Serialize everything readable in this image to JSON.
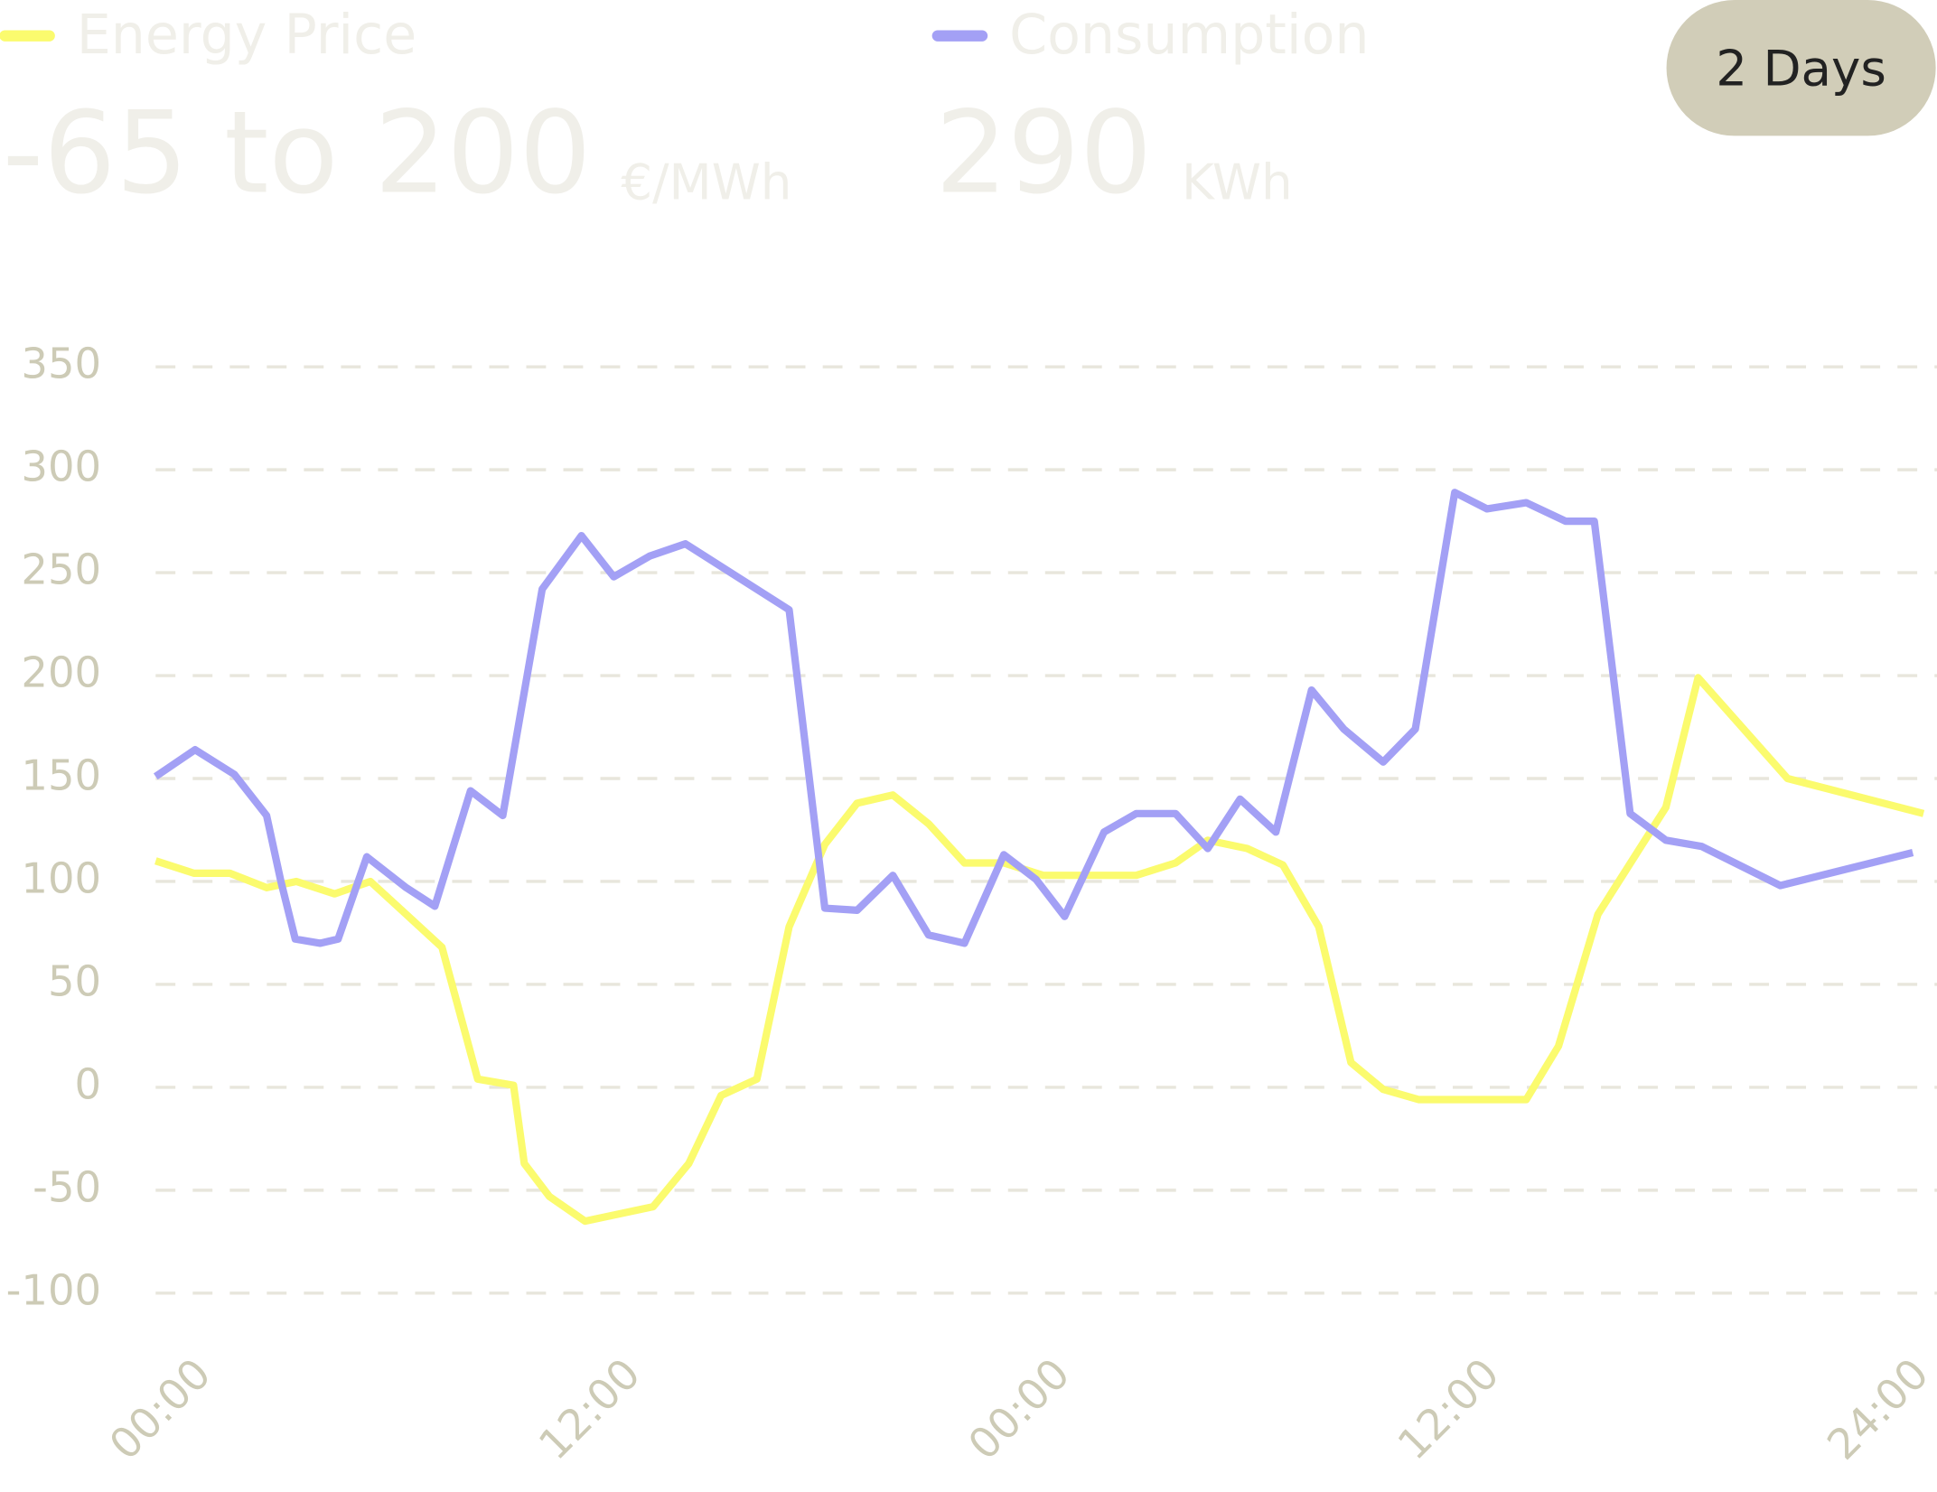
{
  "chart_data": {
    "type": "line",
    "period": "2 Days",
    "series": [
      {
        "name": "Energy Price",
        "color": "#fbfb6e",
        "summary": "-65 to 200",
        "unit": "€/MWh",
        "x": [
          0,
          1.07,
          2.07,
          3.1,
          3.93,
          5,
          6,
          7,
          8,
          9,
          10,
          10.3,
          11,
          12,
          13.9,
          14.9,
          15.8,
          16.8,
          17.7,
          18.7,
          19.6,
          20.6,
          21.6,
          22.6,
          23.7,
          24.8,
          27.4,
          28.5,
          29.4,
          30.5,
          31.5,
          32.5,
          33.4,
          34.3,
          35.3,
          38.3,
          39.2,
          40.3,
          42.2,
          43.1,
          45.6,
          49.4
        ],
        "values": [
          110,
          104,
          104,
          97,
          100,
          94,
          100,
          84,
          68,
          4,
          1,
          -37,
          -53,
          -65,
          -58,
          -37,
          -4,
          4,
          78,
          118,
          138,
          142,
          128,
          109,
          109,
          103,
          103,
          109,
          120,
          116,
          108,
          78,
          12,
          -1,
          -6,
          -6,
          20,
          84,
          136,
          199,
          150,
          133
        ]
      },
      {
        "name": "Consumption",
        "color": "#a3a0f5",
        "summary": 290,
        "unit": "KWh",
        "x": [
          0,
          1.1,
          2.2,
          3.1,
          3.5,
          3.9,
          4.6,
          5.1,
          5.9,
          7,
          7.8,
          8.8,
          9.7,
          10.8,
          11.9,
          12.8,
          13.8,
          14.8,
          17.7,
          18.7,
          19.6,
          20.6,
          21.6,
          22.6,
          23.7,
          24.6,
          25.4,
          26.5,
          27.4,
          28.5,
          29.4,
          30.3,
          31.3,
          32.3,
          33.2,
          34.3,
          35.2,
          36.3,
          37.2,
          38.3,
          39.4,
          40.2,
          41.2,
          42.2,
          43.2,
          45.4,
          49.1
        ],
        "values": [
          151,
          164,
          152,
          132,
          100,
          72,
          70,
          72,
          112,
          97,
          88,
          144,
          132,
          242,
          268,
          248,
          258,
          264,
          232,
          87,
          86,
          103,
          74,
          70,
          113,
          101,
          83,
          124,
          133,
          133,
          116,
          140,
          124,
          193,
          174,
          158,
          174,
          289,
          281,
          284,
          275,
          275,
          133,
          120,
          117,
          98,
          114
        ]
      }
    ],
    "xlim": [
      0,
      49.5
    ],
    "xticks": [
      {
        "value": 0,
        "label": "00:00"
      },
      {
        "value": 12,
        "label": "12:00"
      },
      {
        "value": 24,
        "label": "00:00"
      },
      {
        "value": 36,
        "label": "12:00"
      },
      {
        "value": 48,
        "label": "24:00"
      }
    ],
    "ylim": [
      -100,
      350
    ],
    "yticks": [
      -100,
      -50,
      0,
      50,
      100,
      150,
      200,
      250,
      300,
      350
    ],
    "grid": true
  }
}
